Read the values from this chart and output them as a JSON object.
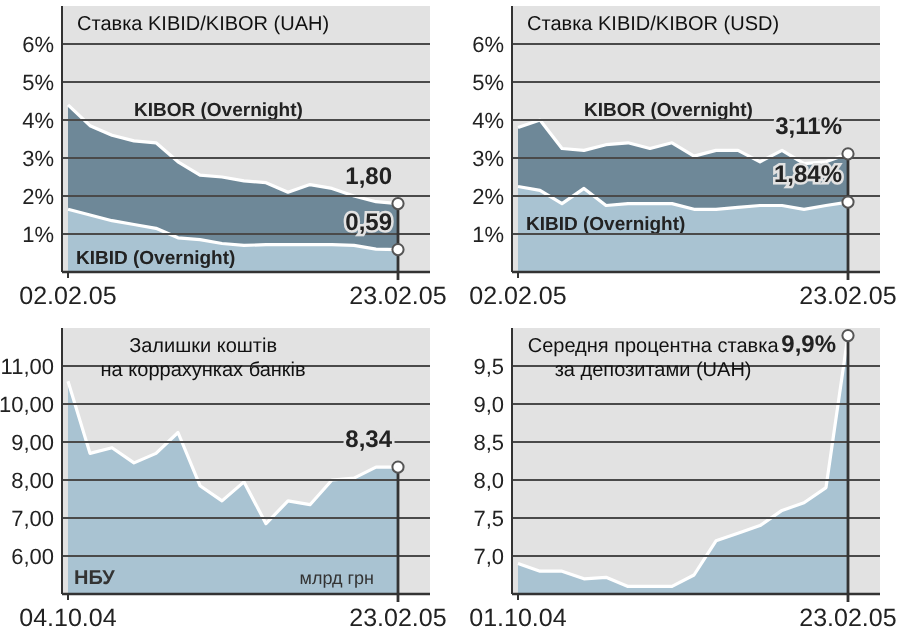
{
  "chart_data": [
    {
      "type": "area",
      "title": "Ставка KIBID/KIBOR (UAH)",
      "categories": [
        "02.02.05",
        null,
        null,
        null,
        null,
        null,
        null,
        null,
        null,
        null,
        null,
        null,
        null,
        null,
        null,
        "23.02.05"
      ],
      "ylim": [
        0,
        7
      ],
      "yticks": [
        {
          "value": 1,
          "label": "1%"
        },
        {
          "value": 2,
          "label": "2%"
        },
        {
          "value": 3,
          "label": "3%"
        },
        {
          "value": 4,
          "label": "4%"
        },
        {
          "value": 5,
          "label": "5%"
        },
        {
          "value": 6,
          "label": "6%"
        }
      ],
      "grid": "y",
      "series": [
        {
          "name": "KIBOR (Overnight)",
          "color": "#6e8898",
          "values": [
            4.4,
            3.85,
            3.6,
            3.45,
            3.4,
            2.9,
            2.55,
            2.5,
            2.4,
            2.35,
            2.1,
            2.3,
            2.2,
            2.0,
            1.85,
            1.8
          ],
          "value_labels": [
            null,
            null,
            null,
            null,
            null,
            null,
            null,
            null,
            null,
            null,
            null,
            null,
            null,
            null,
            null,
            "1,80"
          ]
        },
        {
          "name": "KIBID (Overnight)",
          "color": "#a9c3d2",
          "values": [
            1.65,
            1.5,
            1.35,
            1.25,
            1.15,
            0.9,
            0.85,
            0.75,
            0.7,
            0.72,
            0.72,
            0.72,
            0.72,
            0.7,
            0.6,
            0.59
          ],
          "value_labels": [
            null,
            null,
            null,
            null,
            null,
            null,
            null,
            null,
            null,
            null,
            null,
            null,
            null,
            null,
            null,
            "0,59"
          ]
        }
      ]
    },
    {
      "type": "area",
      "title": "Ставка KIBID/KIBOR (USD)",
      "categories": [
        "02.02.05",
        null,
        null,
        null,
        null,
        null,
        null,
        null,
        null,
        null,
        null,
        null,
        null,
        null,
        null,
        "23.02.05"
      ],
      "ylim": [
        0,
        7
      ],
      "yticks": [
        {
          "value": 1,
          "label": "1%"
        },
        {
          "value": 2,
          "label": "2%"
        },
        {
          "value": 3,
          "label": "3%"
        },
        {
          "value": 4,
          "label": "4%"
        },
        {
          "value": 5,
          "label": "5%"
        },
        {
          "value": 6,
          "label": "6%"
        }
      ],
      "grid": "y",
      "series": [
        {
          "name": "KIBOR (Overnight)",
          "color": "#6e8898",
          "values": [
            3.8,
            4.0,
            3.25,
            3.2,
            3.35,
            3.4,
            3.25,
            3.4,
            3.05,
            3.2,
            3.2,
            2.9,
            3.2,
            2.85,
            2.9,
            3.11
          ],
          "value_labels": [
            null,
            null,
            null,
            null,
            null,
            null,
            null,
            null,
            null,
            null,
            null,
            null,
            null,
            null,
            null,
            "3,11%"
          ]
        },
        {
          "name": "KIBID (Overnight)",
          "color": "#a9c3d2",
          "values": [
            2.25,
            2.15,
            1.8,
            2.2,
            1.75,
            1.8,
            1.8,
            1.8,
            1.65,
            1.65,
            1.7,
            1.75,
            1.75,
            1.65,
            1.75,
            1.84
          ],
          "value_labels": [
            null,
            null,
            null,
            null,
            null,
            null,
            null,
            null,
            null,
            null,
            null,
            null,
            null,
            null,
            null,
            "1,84%"
          ]
        }
      ]
    },
    {
      "type": "area",
      "title": "Залишки коштів\nна коррахунках банків",
      "categories": [
        "04.10.04",
        null,
        null,
        null,
        null,
        null,
        null,
        null,
        null,
        null,
        null,
        null,
        null,
        null,
        null,
        "23.02.05"
      ],
      "ylim": [
        5,
        12
      ],
      "yticks": [
        {
          "value": 6,
          "label": "6,00"
        },
        {
          "value": 7,
          "label": "7,00"
        },
        {
          "value": 8,
          "label": "8,00"
        },
        {
          "value": 9,
          "label": "9,00"
        },
        {
          "value": 10,
          "label": "10,00"
        },
        {
          "value": 11,
          "label": "11,00"
        }
      ],
      "grid": "y",
      "annotations": [
        "НБУ",
        "млрд грн"
      ],
      "series": [
        {
          "color": "#a9c3d2",
          "values": [
            10.6,
            8.7,
            8.85,
            8.45,
            8.7,
            9.25,
            7.85,
            7.45,
            7.95,
            6.85,
            7.45,
            7.35,
            8.0,
            8.05,
            8.34,
            8.34
          ],
          "value_labels": [
            null,
            null,
            null,
            null,
            null,
            null,
            null,
            null,
            null,
            null,
            null,
            null,
            null,
            null,
            null,
            "8,34"
          ]
        }
      ]
    },
    {
      "type": "area",
      "title": "Середня процентна ставка\nза депозитами (UAH)",
      "categories": [
        "01.10.04",
        null,
        null,
        null,
        null,
        null,
        null,
        null,
        null,
        null,
        null,
        null,
        null,
        null,
        null,
        "23.02.05"
      ],
      "ylim": [
        6.5,
        10
      ],
      "yticks": [
        {
          "value": 7,
          "label": "7,0"
        },
        {
          "value": 7.5,
          "label": "7,5"
        },
        {
          "value": 8,
          "label": "8,0"
        },
        {
          "value": 8.5,
          "label": "8,5"
        },
        {
          "value": 9,
          "label": "9,0"
        },
        {
          "value": 9.5,
          "label": "9,5"
        }
      ],
      "grid": "y",
      "series": [
        {
          "color": "#a9c3d2",
          "values": [
            6.9,
            6.8,
            6.8,
            6.7,
            6.72,
            6.6,
            6.6,
            6.6,
            6.75,
            7.2,
            7.3,
            7.4,
            7.6,
            7.7,
            7.9,
            9.9
          ],
          "value_labels": [
            null,
            null,
            null,
            null,
            null,
            null,
            null,
            null,
            null,
            null,
            null,
            null,
            null,
            null,
            null,
            "9,9%"
          ]
        }
      ]
    }
  ]
}
